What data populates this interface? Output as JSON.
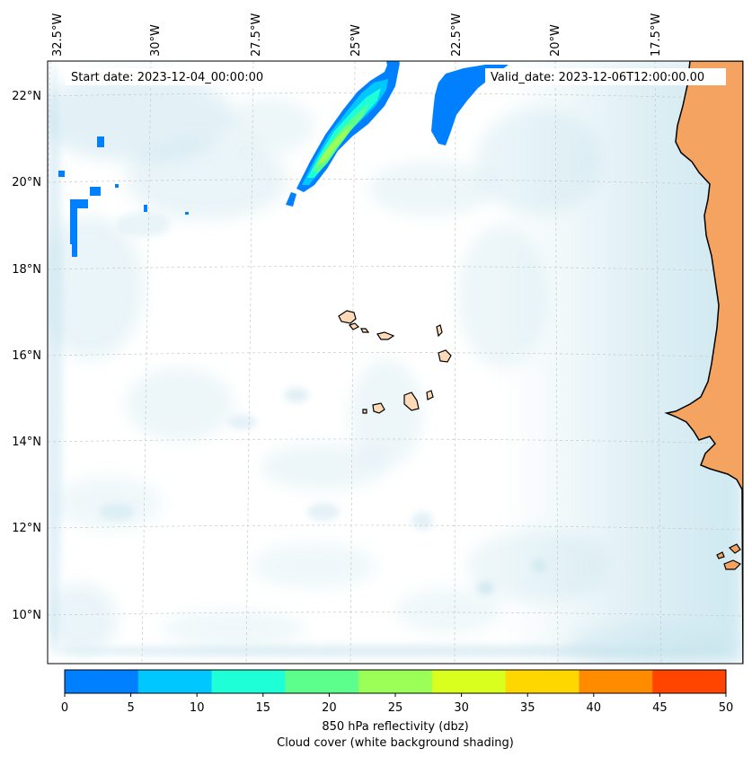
{
  "header": {
    "start_date": "Start date: 2023-12-04_00:00:00",
    "valid_date": "Valid_date: 2023-12-06T12:00:00.00"
  },
  "axes": {
    "lon_labels": [
      "32.5°W",
      "30°W",
      "27.5°W",
      "25°W",
      "22.5°W",
      "20°W",
      "17.5°W"
    ],
    "lat_labels": [
      "22°N",
      "20°N",
      "18°N",
      "16°N",
      "14°N",
      "12°N",
      "10°N"
    ]
  },
  "colorbar": {
    "ticks": [
      "0",
      "5",
      "10",
      "15",
      "20",
      "25",
      "30",
      "35",
      "40",
      "45",
      "50"
    ],
    "colors": [
      "#0080ff",
      "#00c8ff",
      "#1effd8",
      "#5cff8c",
      "#9bff57",
      "#d8ff1e",
      "#ffd700",
      "#ff8c00",
      "#ff4500"
    ],
    "label_line1": "850 hPa reflectivity (dbz)",
    "label_line2": "Cloud cover (white background shading)"
  },
  "colors": {
    "land": "#f4a460",
    "island": "#ffdab9",
    "cloud": "#add8e6",
    "grid": "#cccccc"
  }
}
